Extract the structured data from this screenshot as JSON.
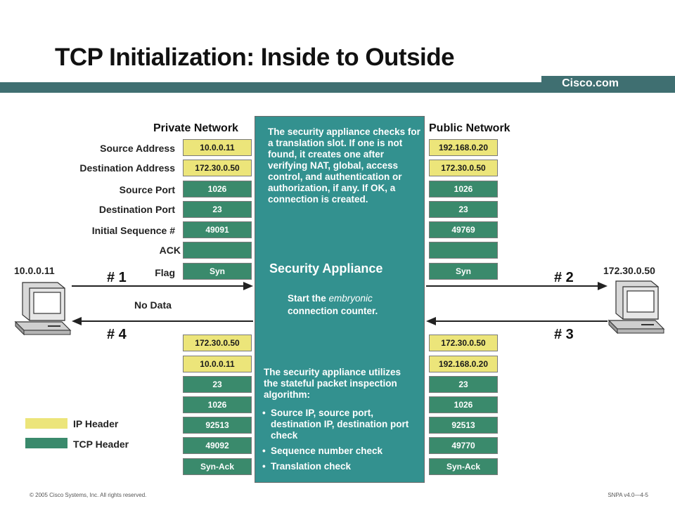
{
  "title": "TCP Initialization: Inside to Outside",
  "brand": "Cisco.com",
  "networks": {
    "private": "Private Network",
    "public": "Public Network"
  },
  "field_labels": [
    "Source Address",
    "Destination Address",
    "Source Port",
    "Destination Port",
    "Initial Sequence #",
    "ACK",
    "Flag"
  ],
  "hosts": {
    "inside": "10.0.0.11",
    "outside": "172.30.0.50"
  },
  "outbound_private": [
    "10.0.0.11",
    "172.30.0.50",
    "1026",
    "23",
    "49091",
    "",
    "Syn"
  ],
  "outbound_public": [
    "192.168.0.20",
    "172.30.0.50",
    "1026",
    "23",
    "49769",
    "",
    "Syn"
  ],
  "reply_private": [
    "172.30.0.50",
    "10.0.0.11",
    "23",
    "1026",
    "92513",
    "49092",
    "Syn-Ack"
  ],
  "reply_public": [
    "172.30.0.50",
    "192.168.0.20",
    "23",
    "1026",
    "92513",
    "49770",
    "Syn-Ack"
  ],
  "no_data": "No Data",
  "steps": {
    "s1": "# 1",
    "s2": "# 2",
    "s3": "# 3",
    "s4": "# 4"
  },
  "appliance": {
    "title": "Security  Appliance",
    "top_text": "The security appliance checks for a translation slot. If one is not found,  it creates one after verifying NAT, global, access control, and authentication or authorization, if any. If OK, a connection is created.",
    "counter_pre": "Start the ",
    "counter_em": "embryonic",
    "counter_post": "connection counter.",
    "bottom_intro": "The security appliance utilizes the stateful packet inspection algorithm:",
    "checks": [
      "Source IP, source port, destination IP, destination port check",
      "Sequence number check",
      "Translation check"
    ]
  },
  "legend": {
    "ip": "IP Header",
    "tcp": "TCP Header"
  },
  "colors": {
    "ip_header": "#ece57a",
    "tcp_header": "#3a8a6c",
    "appliance": "#33918f",
    "bar": "#3f6f71"
  },
  "footer": {
    "left": "© 2005 Cisco Systems, Inc. All rights reserved.",
    "right": "SNPA v4.0—4-5"
  }
}
